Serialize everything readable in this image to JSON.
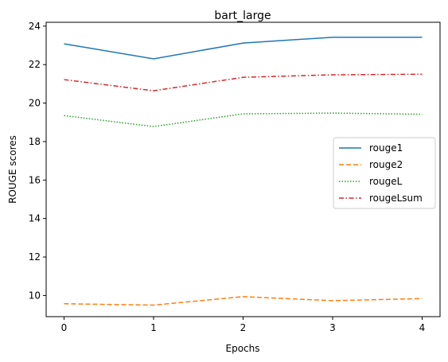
{
  "chart_data": {
    "type": "line",
    "title": "bart_large",
    "xlabel": "Epochs",
    "ylabel": "ROUGE scores",
    "x": [
      0,
      1,
      2,
      3,
      4
    ],
    "xticks": [
      "0",
      "1",
      "2",
      "3",
      "4"
    ],
    "yticks": [
      "10",
      "12",
      "14",
      "16",
      "18",
      "20",
      "22",
      "24"
    ],
    "xlim": [
      -0.2,
      4.2
    ],
    "ylim": [
      8.9,
      24.2
    ],
    "grid": false,
    "legend_position": "center-right",
    "series": [
      {
        "name": "rouge1",
        "values": [
          23.08,
          22.3,
          23.12,
          23.42,
          23.42
        ],
        "color": "#1f77b4",
        "style": "solid"
      },
      {
        "name": "rouge2",
        "values": [
          9.57,
          9.5,
          9.94,
          9.73,
          9.84
        ],
        "color": "#ff7f0e",
        "style": "dashed"
      },
      {
        "name": "rougeL",
        "values": [
          19.35,
          18.78,
          19.44,
          19.48,
          19.42
        ],
        "color": "#2ca02c",
        "style": "dotted"
      },
      {
        "name": "rougeLsum",
        "values": [
          21.22,
          20.64,
          21.34,
          21.47,
          21.5
        ],
        "color": "#d62728",
        "style": "dashdot"
      }
    ]
  }
}
